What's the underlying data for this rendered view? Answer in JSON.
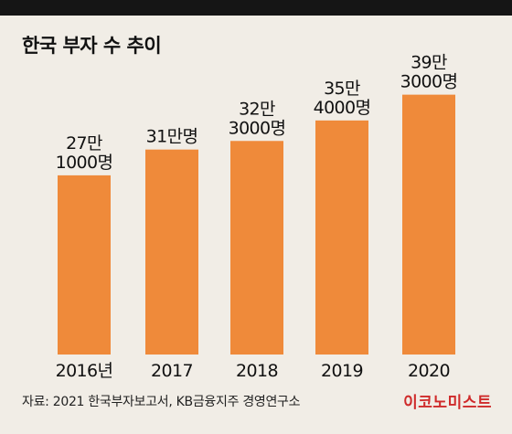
{
  "title": "한국 부자 수 추이",
  "source": "자료: 2021 한국부자보고서, KB금융지주 경영연구소",
  "brand": "이코노미스트",
  "colors": {
    "bar": "#ef8a3a",
    "top_bar": "#151515",
    "background": "#f1ede6",
    "brand": "#cf2b2b"
  },
  "chart_data": {
    "type": "bar",
    "title": "한국 부자 수 추이",
    "categories": [
      "2016년",
      "2017",
      "2018",
      "2019",
      "2020"
    ],
    "values": [
      271000,
      310000,
      323000,
      354000,
      393000
    ],
    "value_labels": [
      [
        "27만",
        "1000명"
      ],
      [
        "31만명"
      ],
      [
        "32만",
        "3000명"
      ],
      [
        "35만",
        "4000명"
      ],
      [
        "39만",
        "3000명"
      ]
    ],
    "xlabel": "",
    "ylabel": "",
    "grid": false,
    "legend": "none"
  }
}
